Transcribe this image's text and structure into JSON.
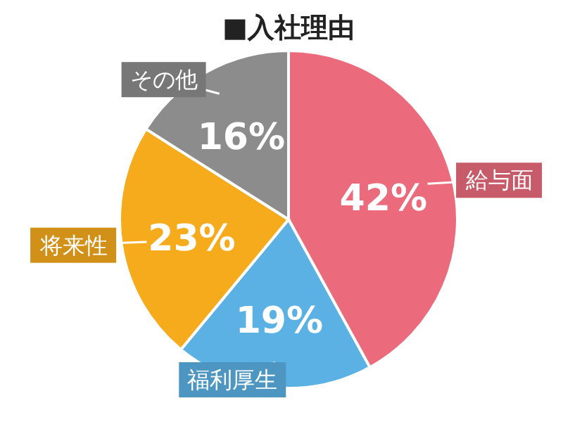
{
  "chart_data": {
    "type": "pie",
    "title": "■入社理由",
    "categories": [
      "給与面",
      "福利厚生",
      "将来性",
      "その他"
    ],
    "values": [
      42,
      19,
      23,
      16
    ],
    "colors": [
      "#eb6b7c",
      "#5cb1e4",
      "#f6ab1c",
      "#8c8c8c"
    ],
    "value_labels": [
      "42%",
      "19%",
      "23%",
      "16%"
    ]
  }
}
